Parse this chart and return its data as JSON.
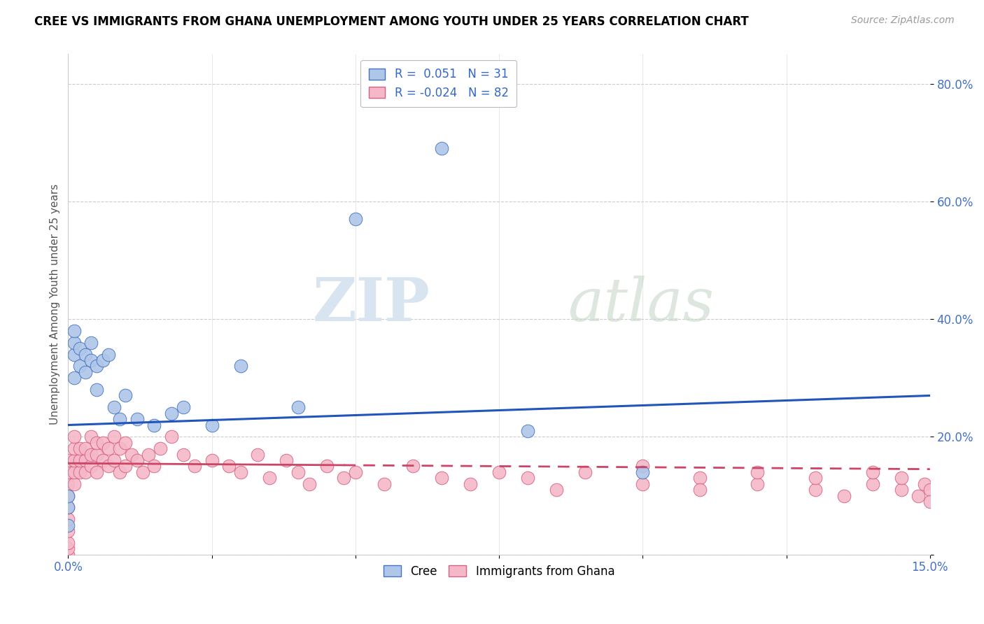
{
  "title": "CREE VS IMMIGRANTS FROM GHANA UNEMPLOYMENT AMONG YOUTH UNDER 25 YEARS CORRELATION CHART",
  "source": "Source: ZipAtlas.com",
  "ylabel": "Unemployment Among Youth under 25 years",
  "xlim": [
    0,
    0.15
  ],
  "ylim": [
    0,
    0.85
  ],
  "xtick_positions": [
    0.0,
    0.025,
    0.05,
    0.075,
    0.1,
    0.125,
    0.15
  ],
  "xtick_labels": [
    "0.0%",
    "",
    "",
    "",
    "",
    "",
    "15.0%"
  ],
  "ytick_positions": [
    0.0,
    0.2,
    0.4,
    0.6,
    0.8
  ],
  "ytick_labels": [
    "",
    "20.0%",
    "40.0%",
    "60.0%",
    "80.0%"
  ],
  "cree_R": 0.051,
  "cree_N": 31,
  "ghana_R": -0.024,
  "ghana_N": 82,
  "cree_color": "#aec6e8",
  "cree_edge_color": "#4472c4",
  "ghana_color": "#f4b8c8",
  "ghana_edge_color": "#d96080",
  "cree_line_color": "#2255bb",
  "ghana_line_color": "#cc4466",
  "watermark_zip": "ZIP",
  "watermark_atlas": "atlas",
  "cree_x": [
    0.0,
    0.0,
    0.0,
    0.001,
    0.001,
    0.001,
    0.001,
    0.002,
    0.002,
    0.003,
    0.003,
    0.004,
    0.004,
    0.005,
    0.005,
    0.006,
    0.007,
    0.008,
    0.009,
    0.01,
    0.012,
    0.015,
    0.018,
    0.02,
    0.025,
    0.03,
    0.04,
    0.05,
    0.065,
    0.08,
    0.1
  ],
  "cree_y": [
    0.05,
    0.08,
    0.1,
    0.3,
    0.34,
    0.36,
    0.38,
    0.32,
    0.35,
    0.31,
    0.34,
    0.33,
    0.36,
    0.28,
    0.32,
    0.33,
    0.34,
    0.25,
    0.23,
    0.27,
    0.23,
    0.22,
    0.24,
    0.25,
    0.22,
    0.32,
    0.25,
    0.57,
    0.69,
    0.21,
    0.14
  ],
  "ghana_x": [
    0.0,
    0.0,
    0.0,
    0.0,
    0.0,
    0.0,
    0.0,
    0.0,
    0.0,
    0.0,
    0.001,
    0.001,
    0.001,
    0.001,
    0.001,
    0.002,
    0.002,
    0.002,
    0.003,
    0.003,
    0.003,
    0.004,
    0.004,
    0.004,
    0.005,
    0.005,
    0.005,
    0.006,
    0.006,
    0.007,
    0.007,
    0.008,
    0.008,
    0.009,
    0.009,
    0.01,
    0.01,
    0.011,
    0.012,
    0.013,
    0.014,
    0.015,
    0.016,
    0.018,
    0.02,
    0.022,
    0.025,
    0.028,
    0.03,
    0.033,
    0.035,
    0.038,
    0.04,
    0.042,
    0.045,
    0.048,
    0.05,
    0.055,
    0.06,
    0.065,
    0.07,
    0.075,
    0.08,
    0.085,
    0.09,
    0.1,
    0.1,
    0.11,
    0.11,
    0.12,
    0.12,
    0.13,
    0.13,
    0.135,
    0.14,
    0.14,
    0.145,
    0.145,
    0.148,
    0.149,
    0.15,
    0.15
  ],
  "ghana_y": [
    0.0,
    0.01,
    0.02,
    0.04,
    0.06,
    0.08,
    0.1,
    0.12,
    0.14,
    0.16,
    0.12,
    0.14,
    0.16,
    0.18,
    0.2,
    0.14,
    0.16,
    0.18,
    0.14,
    0.16,
    0.18,
    0.15,
    0.17,
    0.2,
    0.14,
    0.17,
    0.19,
    0.16,
    0.19,
    0.15,
    0.18,
    0.16,
    0.2,
    0.14,
    0.18,
    0.15,
    0.19,
    0.17,
    0.16,
    0.14,
    0.17,
    0.15,
    0.18,
    0.2,
    0.17,
    0.15,
    0.16,
    0.15,
    0.14,
    0.17,
    0.13,
    0.16,
    0.14,
    0.12,
    0.15,
    0.13,
    0.14,
    0.12,
    0.15,
    0.13,
    0.12,
    0.14,
    0.13,
    0.11,
    0.14,
    0.12,
    0.15,
    0.13,
    0.11,
    0.12,
    0.14,
    0.11,
    0.13,
    0.1,
    0.12,
    0.14,
    0.11,
    0.13,
    0.1,
    0.12,
    0.11,
    0.09
  ],
  "cree_trend_x": [
    0.0,
    0.15
  ],
  "cree_trend_y": [
    0.22,
    0.27
  ],
  "ghana_trend_x": [
    0.0,
    0.15
  ],
  "ghana_trend_y": [
    0.155,
    0.145
  ]
}
